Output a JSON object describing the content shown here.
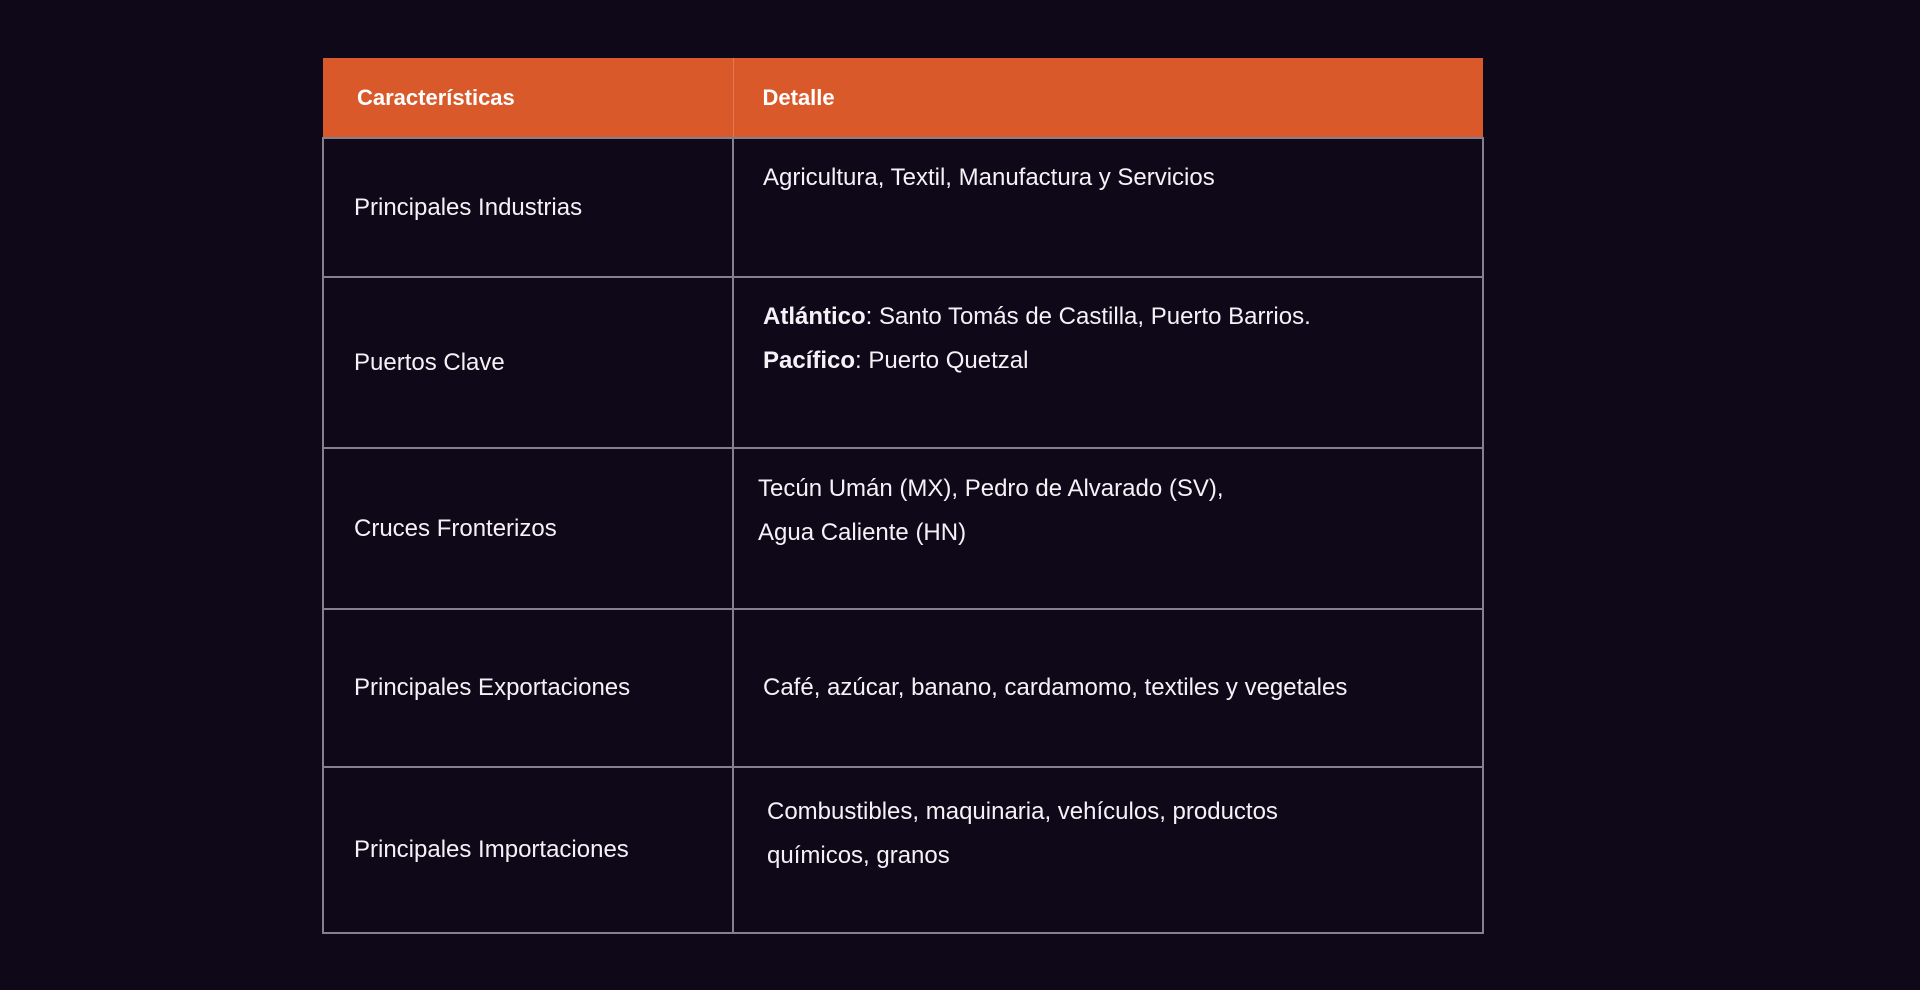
{
  "table": {
    "headers": {
      "characteristic": "Características",
      "detail": "Detalle"
    },
    "rows": [
      {
        "label": "Principales Industrias",
        "detail": "Agricultura, Textil, Manufactura y Servicios"
      },
      {
        "label": "Puertos Clave",
        "atlantic_label": "Atlántico",
        "atlantic_value": ": Santo Tomás de Castilla, Puerto Barrios.",
        "pacific_label": "Pacífico",
        "pacific_value": ": Puerto Quetzal"
      },
      {
        "label": "Cruces Fronterizos",
        "detail_line1": "Tecún Umán (MX), Pedro de Alvarado (SV),",
        "detail_line2": "Agua Caliente (HN)"
      },
      {
        "label": "Principales Exportaciones",
        "detail": "Café, azúcar, banano, cardamomo, textiles y vegetales"
      },
      {
        "label": "Principales Importaciones",
        "detail_line1": "Combustibles, maquinaria, vehículos, productos",
        "detail_line2": "químicos, granos"
      }
    ]
  },
  "colors": {
    "background": "#0f0819",
    "header": "#d9592b",
    "border": "#85808d"
  }
}
